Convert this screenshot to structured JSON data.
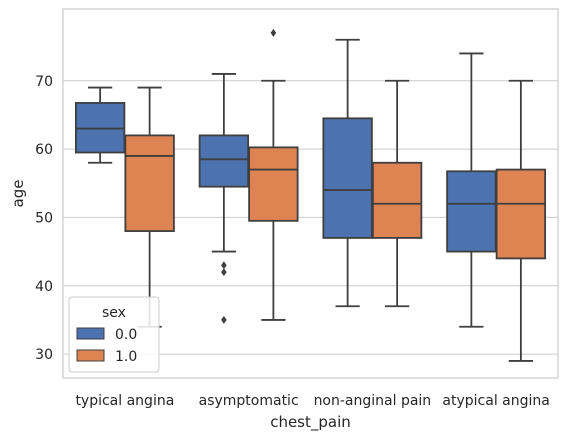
{
  "chart_data": {
    "type": "box",
    "xlabel": "chest_pain",
    "ylabel": "age",
    "ylim": [
      26.5,
      80.5
    ],
    "yticks": [
      30,
      40,
      50,
      60,
      70
    ],
    "grid": "horizontal",
    "categories": [
      "typical angina",
      "asymptomatic",
      "non-anginal pain",
      "atypical angina"
    ],
    "legend": {
      "title": "sex",
      "position": "lower-left"
    },
    "series": [
      {
        "name": "0.0",
        "color": "#4c72b0",
        "boxes": [
          {
            "min": 58,
            "q1": 59.5,
            "median": 63,
            "q3": 66.75,
            "max": 69,
            "outliers": []
          },
          {
            "min": 45,
            "q1": 54.5,
            "median": 58.5,
            "q3": 62,
            "max": 71,
            "outliers": [
              43,
              42,
              35
            ]
          },
          {
            "min": 37,
            "q1": 47,
            "median": 54,
            "q3": 64.5,
            "max": 76,
            "outliers": []
          },
          {
            "min": 34,
            "q1": 45,
            "median": 52,
            "q3": 56.75,
            "max": 74,
            "outliers": []
          }
        ]
      },
      {
        "name": "1.0",
        "color": "#dd8452",
        "boxes": [
          {
            "min": 34,
            "q1": 48,
            "median": 59,
            "q3": 62,
            "max": 69,
            "outliers": []
          },
          {
            "min": 35,
            "q1": 49.5,
            "median": 57,
            "q3": 60.25,
            "max": 70,
            "outliers": [
              77
            ]
          },
          {
            "min": 37,
            "q1": 47,
            "median": 52,
            "q3": 58,
            "max": 70,
            "outliers": []
          },
          {
            "min": 29,
            "q1": 44,
            "median": 52,
            "q3": 57,
            "max": 70,
            "outliers": []
          }
        ]
      }
    ]
  }
}
